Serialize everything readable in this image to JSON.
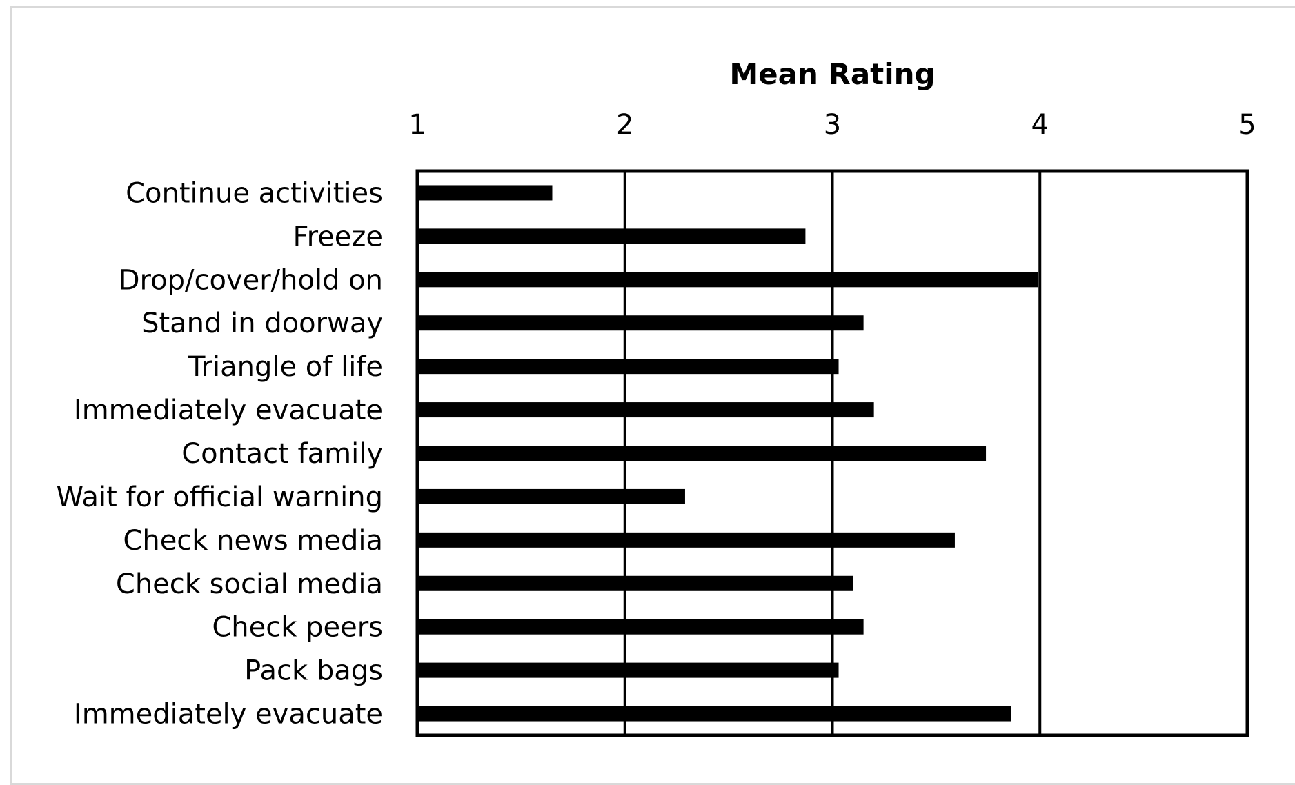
{
  "chart_data": {
    "type": "bar",
    "orientation": "horizontal",
    "title": "",
    "xlabel": "Mean Rating",
    "ylabel": "",
    "x_axis_position": "top",
    "xlim": [
      1,
      5
    ],
    "xticks": [
      "1",
      "2",
      "3",
      "4",
      "5"
    ],
    "grid": true,
    "legend": "none",
    "bar_color": "#000000",
    "categories": [
      "Continue activities",
      "Freeze",
      "Drop/cover/hold on",
      "Stand in doorway",
      "Triangle of life",
      "Immediately evacuate",
      "Contact family",
      "Wait for official warning",
      "Check news media ",
      "Check social media",
      "Check peers",
      "Pack bags",
      "Immediately evacuate"
    ],
    "values": [
      1.65,
      2.87,
      3.99,
      3.15,
      3.03,
      3.2,
      3.74,
      2.29,
      3.59,
      3.1,
      3.15,
      3.03,
      3.86
    ]
  }
}
